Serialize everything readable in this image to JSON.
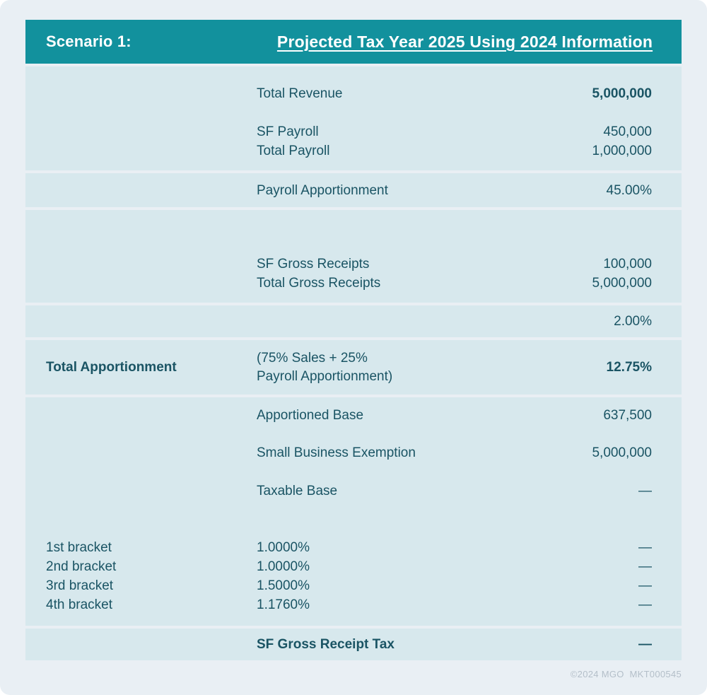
{
  "header": {
    "scenario_label": "Scenario 1:",
    "title": "Projected Tax Year 2025 Using 2024 Information"
  },
  "revenue": {
    "total_revenue_label": "Total Revenue",
    "total_revenue_value": "5,000,000",
    "sf_payroll_label": "SF Payroll",
    "sf_payroll_value": "450,000",
    "total_payroll_label": "Total Payroll",
    "total_payroll_value": "1,000,000"
  },
  "payroll_apportionment": {
    "label": "Payroll Apportionment",
    "value": "45.00%"
  },
  "gross_receipts": {
    "sf_label": "SF Gross Receipts",
    "sf_value": "100,000",
    "total_label": "Total Gross Receipts",
    "total_value": "5,000,000"
  },
  "sales_apportionment": {
    "value": "2.00%"
  },
  "total_apportionment": {
    "label": "Total Apportionment",
    "formula_line1": "(75% Sales + 25%",
    "formula_line2": "Payroll Apportionment)",
    "value": "12.75%"
  },
  "tax_calc": {
    "apportioned_base_label": "Apportioned Base",
    "apportioned_base_value": "637,500",
    "exemption_label": "Small Business Exemption",
    "exemption_value": "5,000,000",
    "taxable_base_label": "Taxable Base",
    "taxable_base_value": "—",
    "brackets": [
      {
        "label": "1st bracket",
        "rate": "1.0000%",
        "value": "—"
      },
      {
        "label": "2nd bracket",
        "rate": "1.0000%",
        "value": "—"
      },
      {
        "label": "3rd bracket",
        "rate": "1.5000%",
        "value": "—"
      },
      {
        "label": "4th bracket",
        "rate": "1.1760%",
        "value": "—"
      }
    ]
  },
  "result": {
    "label": "SF Gross Receipt Tax",
    "value": "—"
  },
  "footer": {
    "text": "©2024 MGO  MKT000545"
  },
  "colors": {
    "header_bg": "#12919d",
    "row_bg": "#d7e8ed",
    "page_bg": "#e9eff4",
    "text": "#1a5464",
    "footer_text": "#b4bfc9"
  }
}
